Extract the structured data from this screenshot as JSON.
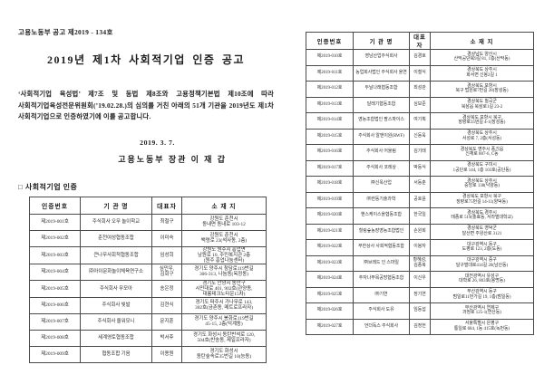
{
  "colors": {
    "paper": "#ffffff",
    "ink": "#1d1d1d",
    "table_border": "#4a4a4a"
  },
  "page_left": {
    "doc_number": "고용노동부 공고 제2019 - 134호",
    "title": "2019년 제1차 사회적기업 인증 공고",
    "body": "‘사회적기업 육성법’ 제7조 및 동법 제8조와 고용정책기본법 제10조에 따라 사회적기업육성전문위원회(’19.02.28.)의 심의를 거친 아래의 51개 기관을 2019년도 제1차 사회적기업으로 인증하였기에 이를 공고합니다.",
    "date": "2019. 3. 7.",
    "signer": "고용노동부 장관 이 재 갑",
    "section_title": "□ 사회적기업 인증",
    "table": {
      "headers": [
        "인증번호",
        "기 관 명",
        "대표자",
        "소 재 지"
      ],
      "rows": [
        [
          "제2019-001호",
          "주식회사 오무 놀이학교",
          "최철구",
          "강원도 춘천시\n동내면 동내로 103-12"
        ],
        [
          "제2019-002호",
          "춘천여성협동조합",
          "이미숙",
          "강원도 춘천시\n백령로 23(석사동, 2층)"
        ],
        [
          "제2019-003호",
          "큰나무사회적협동조합",
          "임성희",
          "강원도 원주시 흥업면\n남원로 10, 주민복지관 2층\n(원주 흥업나눔센터)"
        ],
        [
          "제2019-004호",
          "㈜아이문화놀이체육연구소",
          "심민우,\n김회구",
          "경기도 양주시 청담로119번길\n306-313, 나눔동(옥정동)"
        ],
        [
          "제2019-005호",
          "주식회사 무모아",
          "송은정",
          "경기도 안양시 동안구\n시민대로 401, 902호(관양동,\n대륭테크노타운15차)"
        ],
        [
          "제2019-006호",
          "주식회사 빛발",
          "김현식",
          "경기도 파주시 가나무로 143,\n302호(금촌동, 메트로프라자)"
        ],
        [
          "제2019-007호",
          "주식회사 올워모니",
          "문지훈",
          "경기도 양주시 봉화로119번길\n45-15, 2층(덕계동)"
        ],
        [
          "제2019-008호",
          "세계영토협동조합",
          "박서후",
          "경기도 화성시 동탄반석로 120,\n504호(반송동, 제일프라자)"
        ],
        [
          "제2019-009호",
          "협동조합 기음",
          "이용원",
          "경기도 화성시\n동탄숲속로35번길 10(능동)"
        ]
      ]
    }
  },
  "page_right": {
    "table": {
      "headers": [
        "인증번호",
        "기 관 명",
        "대표자",
        "소 재 지"
      ],
      "rows": [
        [
          "제2019-010호",
          "영남산업주식회사",
          "김경호",
          "경상남도 양산시\n산막공단북9길 81, 1층(산막동)"
        ],
        [
          "제2019-011호",
          "농업회사법인 주식회사 올연",
          "이철식",
          "경상북도 상주시\n화서면 신봉2길 1"
        ],
        [
          "제2019-012호",
          "두날나래협동조합",
          "최성관",
          "경상북도 포항시\n북구 법원로7번길 28(장성동)"
        ],
        [
          "제2019-013호",
          "달레기협동조합",
          "심보준",
          "경상북도 칠곡군\n북삼읍 북삼로1길 23-2"
        ],
        [
          "제2019-014호",
          "영농조합법인 팜스파이스",
          "여기획",
          "경상북도 포항시 북구\n장량로35번길 4-1(장성동)"
        ],
        [
          "제2019-015호",
          "주식회사 알앤이원(RWF)",
          "신동욱",
          "경상북도 상주시\n서성로 7, 2층(서성동)"
        ],
        [
          "제2019-016호",
          "주식회사 어울림",
          "김기태",
          "경상북도 영주시 풍기읍\n신재로 887-6, C동"
        ],
        [
          "제2019-017호",
          "주식회사 코레상",
          "박동식",
          "경상북도 구미시\n1공단로 144, 1층 103호(공단동)"
        ],
        [
          "제2019-018호",
          "㈜신옥산업",
          "서동춘",
          "경상북도 상주시\n중앙로 138(낙양동)"
        ],
        [
          "제2019-019호",
          "㈜한동기술과학",
          "공호윤",
          "경상북도 포항시 북구\n장량로75번길 14-11(양덕동)"
        ],
        [
          "제2019-020호",
          "핸스케이스올협동조합",
          "한국일",
          "경상북도 경주시\n태종로 519(충효동, 서라벌대학교)"
        ],
        [
          "제2019-021호",
          "힐링숲농장영농조합법인",
          "손원희",
          "경상북도 영덕군\n달산면 주왕산로 3121"
        ],
        [
          "제2019-022호",
          "무한상사 사회적협동조합",
          "이봉자",
          "대구광역시 동구\n도평로 123, 2층(도동)"
        ],
        [
          "제2019-023호",
          "㈜브레드 인 스마일",
          "황혜성,\n김종복",
          "대구광역시 중구\n달구벌대로414길 20(남산동)"
        ],
        [
          "제2019-024호",
          "추자나무목공방협동조합",
          "이신우",
          "대전광역시 유성구\n대학로 26, 803호(봉명동)"
        ],
        [
          "제2019-025호",
          "㈜기연",
          "정기연",
          "부산광역시 동구\n범일로11번가길 19, 1층(범일동)"
        ],
        [
          "제2019-026호",
          "주식회사 도유",
          "임동섭",
          "부산광역시 연제구\n과정로 125-1(연산동)"
        ],
        [
          "제2019-027호",
          "언더독스 주식회사",
          "김정헌",
          "서울특별시 은평구\n통일로 684, 1동 415호(녹번동)"
        ]
      ]
    }
  }
}
